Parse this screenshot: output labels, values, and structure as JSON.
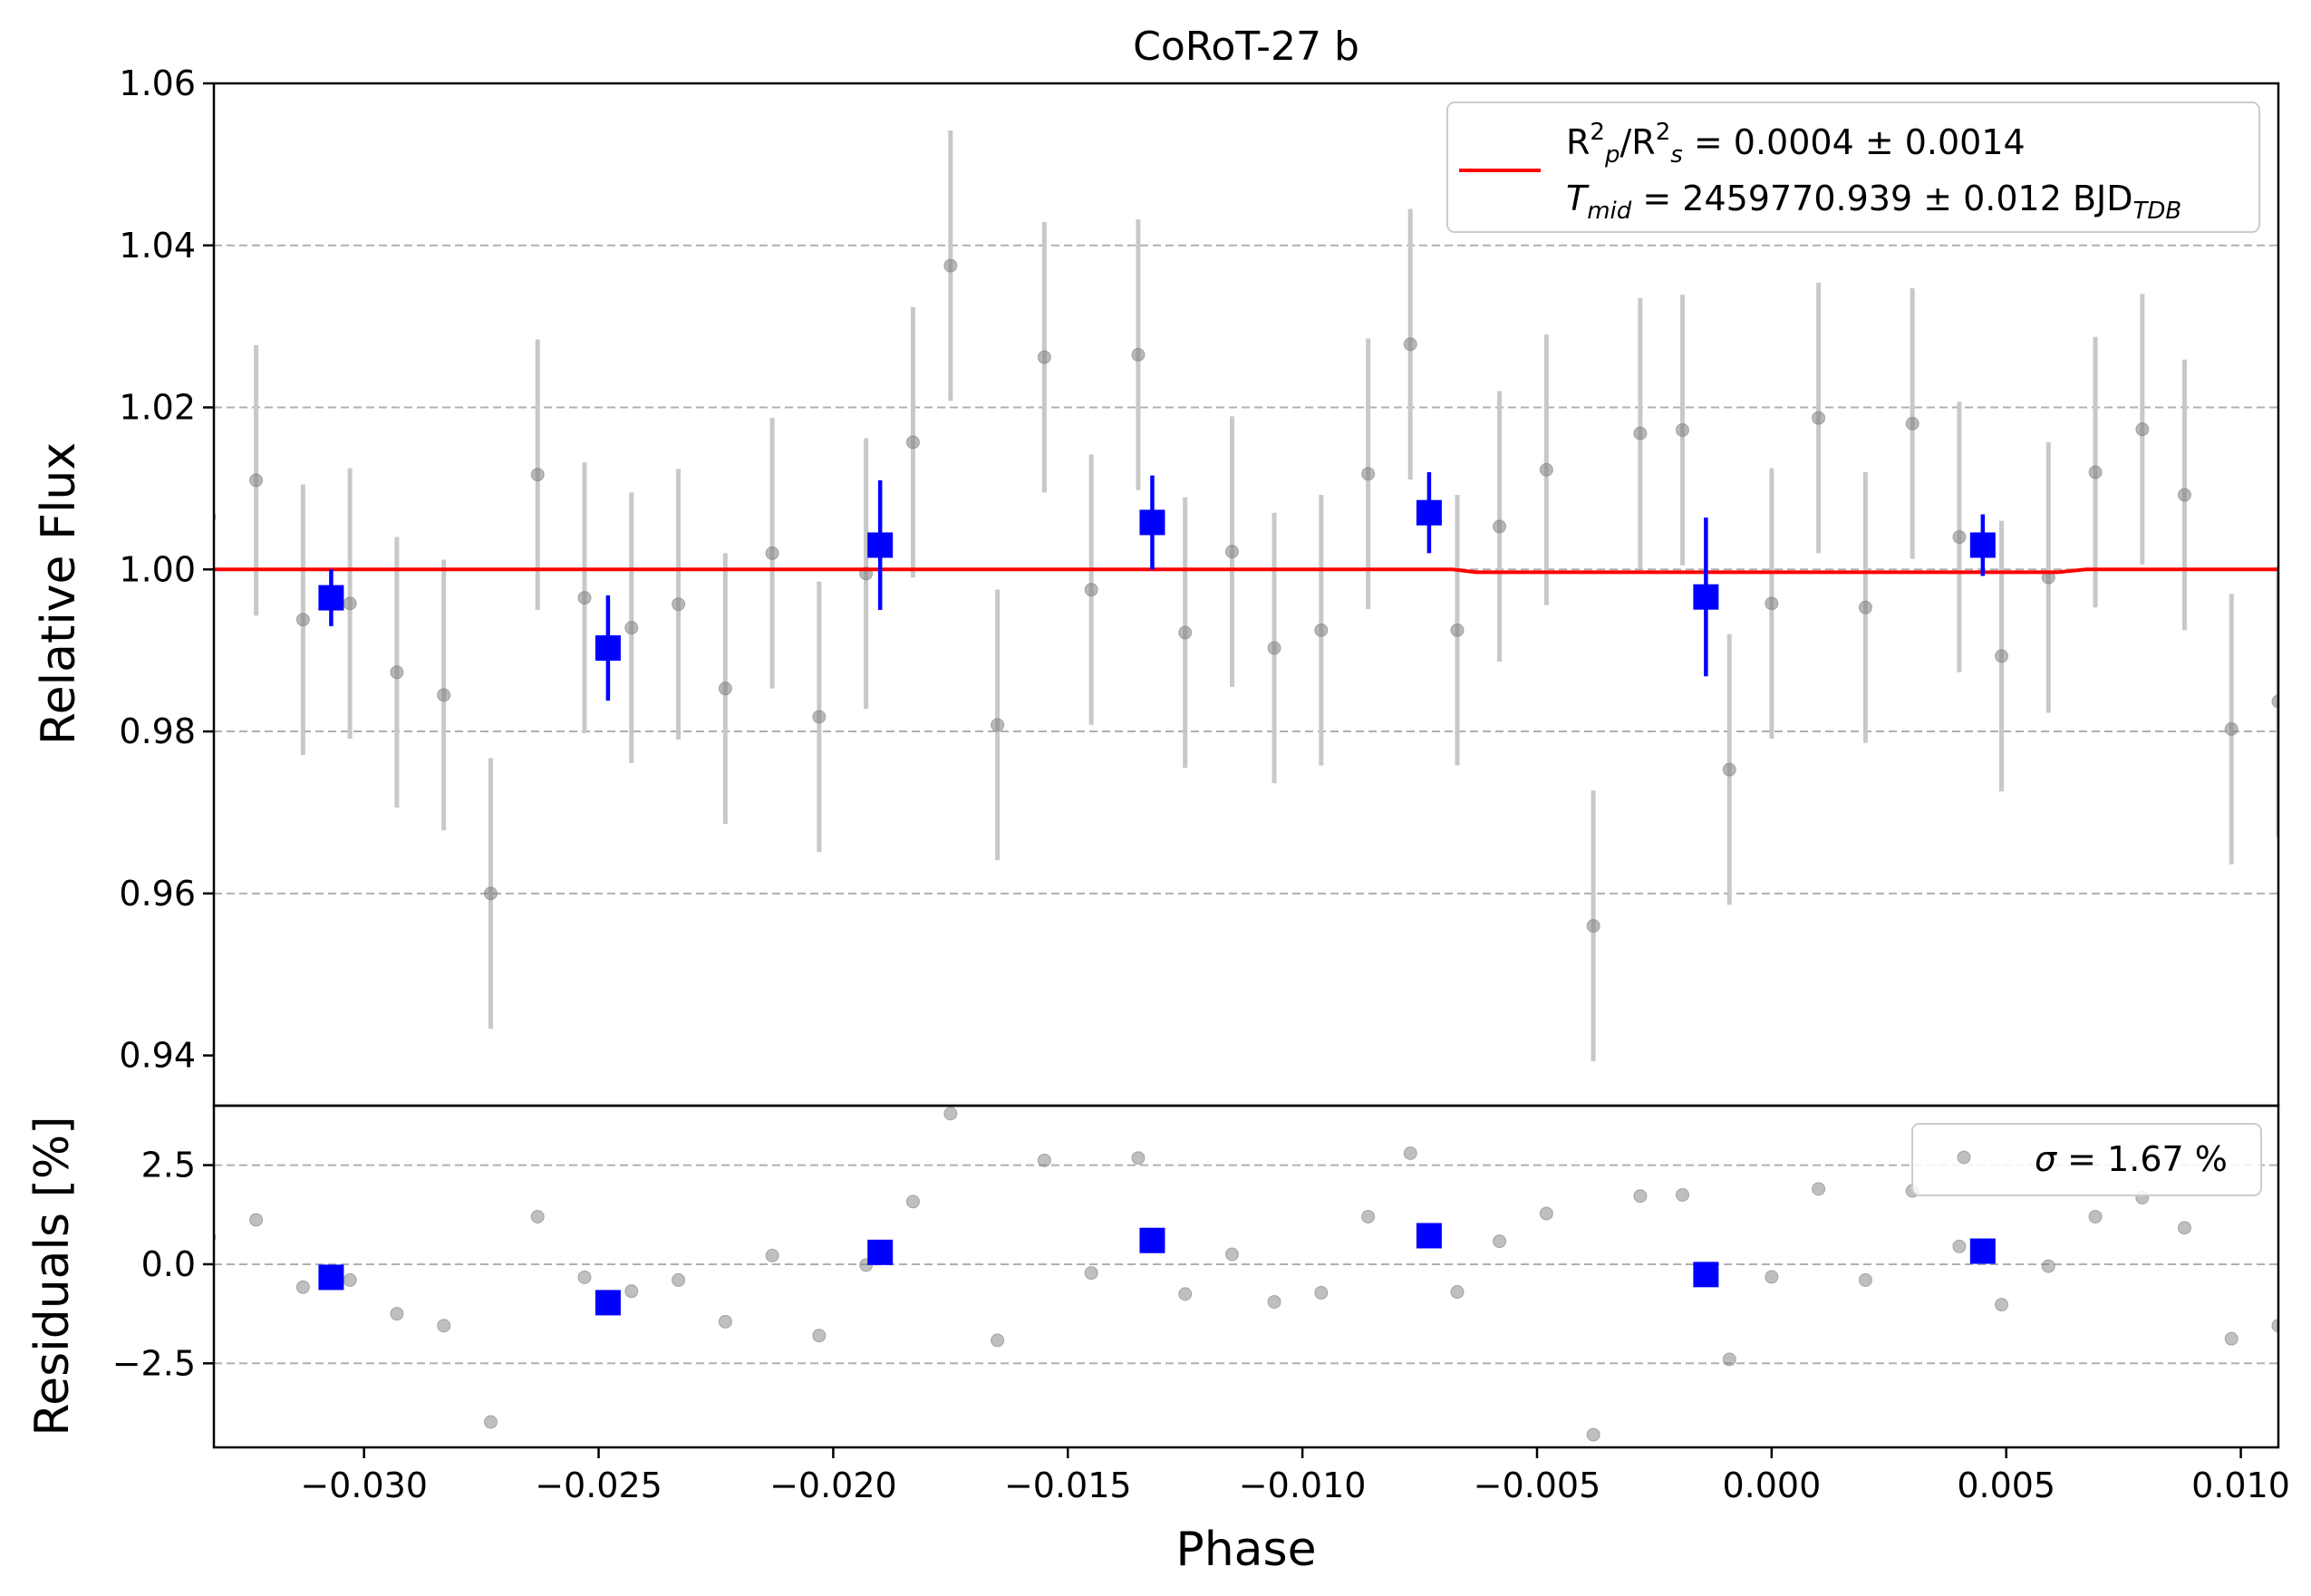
{
  "chart_data": [
    {
      "type": "scatter",
      "panel": "light-curve",
      "title": "CoRoT-27 b",
      "xlabel": "",
      "ylabel": "Relative Flux",
      "xlim": [
        -0.0332,
        0.0108
      ],
      "ylim": [
        0.9338,
        1.06
      ],
      "yticks": [
        0.94,
        0.96,
        0.98,
        1.0,
        1.02,
        1.04,
        1.06
      ],
      "ytick_labels": [
        "0.94",
        "0.96",
        "0.98",
        "1.00",
        "1.02",
        "1.04",
        "1.06"
      ],
      "grid": "y-dashed",
      "legend_placement": "top-right",
      "legend_lines": [
        {
          "parts": [
            {
              "t": "R"
            },
            {
              "t": "2",
              "sup": true
            },
            {
              "t": "p",
              "sub": true,
              "it": true
            },
            {
              "t": "/R"
            },
            {
              "t": "2",
              "sup": true
            },
            {
              "t": "s",
              "sub": true,
              "it": true
            },
            {
              "t": " = 0.0004 ± 0.0014"
            }
          ]
        },
        {
          "parts": [
            {
              "t": "T",
              "it": true
            },
            {
              "t": "mid",
              "sub": true,
              "it": true
            },
            {
              "t": " = 2459770.939 ± 0.012 BJD"
            },
            {
              "t": "TDB",
              "sub": true,
              "it": true
            }
          ]
        }
      ],
      "colors": {
        "raw": "#808080",
        "raw_err": "#c8c8c8",
        "binned": "#0000ff",
        "model": "#ff0000",
        "grid": "#b0b0b0"
      },
      "series": [
        {
          "name": "raw",
          "x": [
            -0.0333,
            -0.0323,
            -0.0313,
            -0.0303,
            -0.0293,
            -0.0283,
            -0.0273,
            -0.0263,
            -0.0253,
            -0.0243,
            -0.0233,
            -0.0223,
            -0.0213,
            -0.0203,
            -0.0193,
            -0.0183,
            -0.0175,
            -0.0165,
            -0.0155,
            -0.0145,
            -0.0135,
            -0.0125,
            -0.0115,
            -0.0106,
            -0.0096,
            -0.0086,
            -0.0077,
            -0.0067,
            -0.0058,
            -0.0048,
            -0.0038,
            -0.0028,
            -0.0019,
            -0.0009,
            0.0,
            0.001,
            0.002,
            0.003,
            0.004,
            0.0049,
            0.0059,
            0.0069,
            0.0079,
            0.0088,
            0.0098,
            0.0108
          ],
          "y": [
            1.0065,
            1.011,
            0.9938,
            0.9958,
            0.9873,
            0.9845,
            0.96,
            1.0117,
            0.9965,
            0.9928,
            0.9957,
            0.9853,
            1.002,
            0.9818,
            0.9995,
            1.0157,
            1.0375,
            0.9808,
            1.0262,
            0.9975,
            1.0265,
            0.9922,
            1.0022,
            0.9903,
            0.9925,
            1.0118,
            1.0278,
            0.9925,
            1.0053,
            1.0123,
            0.956,
            1.0168,
            1.0172,
            0.9753,
            0.9958,
            1.0187,
            0.9953,
            1.018,
            1.004,
            0.9893,
            0.999,
            1.012,
            1.0173,
            1.0092,
            0.9803,
            0.9837
          ],
          "yerr": 0.0167
        },
        {
          "name": "binned",
          "x": [
            -0.0307,
            -0.0248,
            -0.019,
            -0.0132,
            -0.0073,
            -0.0014,
            0.0045
          ],
          "y": [
            0.9965,
            0.9903,
            1.003,
            1.0058,
            1.007,
            0.9966,
            1.003
          ],
          "yerr": [
            0.0035,
            0.0065,
            0.008,
            0.0058,
            0.005,
            0.0098,
            0.0038
          ]
        },
        {
          "name": "model",
          "x": [
            -0.0332,
            -0.0068,
            -0.0063,
            0.0061,
            0.0067,
            0.0108
          ],
          "y": [
            1.0,
            1.0,
            0.99965,
            0.99965,
            1.0,
            1.0
          ]
        }
      ]
    },
    {
      "type": "scatter",
      "panel": "residuals",
      "xlabel": "Phase",
      "ylabel": "Residuals [%]",
      "xlim": [
        -0.0332,
        0.0108
      ],
      "ylim": [
        -4.62,
        4.0
      ],
      "xticks": [
        -0.03,
        -0.025,
        -0.02,
        -0.015,
        -0.01,
        -0.005,
        0.0,
        0.005,
        0.01
      ],
      "xtick_labels": [
        "−0.030",
        "−0.025",
        "−0.020",
        "−0.015",
        "−0.010",
        "−0.005",
        "0.000",
        "0.005",
        "0.010"
      ],
      "yticks": [
        -2.5,
        0.0,
        2.5
      ],
      "ytick_labels": [
        "−2.5",
        "0.0",
        "2.5"
      ],
      "grid": "y-dashed",
      "legend_placement": "top-right",
      "legend_lines": [
        {
          "parts": [
            {
              "t": "σ",
              "it": true
            },
            {
              "t": " = 1.67 %"
            }
          ]
        }
      ],
      "series": [
        {
          "name": "raw",
          "x": [
            -0.0333,
            -0.0323,
            -0.0313,
            -0.0303,
            -0.0293,
            -0.0283,
            -0.0273,
            -0.0263,
            -0.0253,
            -0.0243,
            -0.0233,
            -0.0223,
            -0.0213,
            -0.0203,
            -0.0193,
            -0.0183,
            -0.0175,
            -0.0165,
            -0.0155,
            -0.0145,
            -0.0135,
            -0.0125,
            -0.0115,
            -0.0106,
            -0.0096,
            -0.0086,
            -0.0077,
            -0.0067,
            -0.0058,
            -0.0048,
            -0.0038,
            -0.0028,
            -0.0019,
            -0.0009,
            0.0,
            0.001,
            0.002,
            0.003,
            0.004,
            0.0049,
            0.0059,
            0.0069,
            0.0079,
            0.0088,
            0.0098,
            0.0108
          ],
          "y": [
            0.68,
            1.12,
            -0.58,
            -0.4,
            -1.25,
            -1.55,
            -3.98,
            1.2,
            -0.33,
            -0.68,
            -0.4,
            -1.45,
            0.22,
            -1.8,
            -0.02,
            1.58,
            3.8,
            -1.92,
            2.62,
            -0.22,
            2.68,
            -0.75,
            0.25,
            -0.95,
            -0.72,
            1.2,
            2.8,
            -0.7,
            0.58,
            1.28,
            -4.3,
            1.72,
            1.75,
            -2.4,
            -0.32,
            1.9,
            -0.4,
            1.85,
            0.45,
            -1.02,
            -0.05,
            1.2,
            1.68,
            0.92,
            -1.88,
            -1.55
          ]
        },
        {
          "name": "binned",
          "x": [
            -0.0307,
            -0.0248,
            -0.019,
            -0.0132,
            -0.0073,
            -0.0014,
            0.0045
          ],
          "y": [
            -0.33,
            -0.97,
            0.3,
            0.6,
            0.72,
            -0.26,
            0.33
          ]
        }
      ]
    }
  ]
}
